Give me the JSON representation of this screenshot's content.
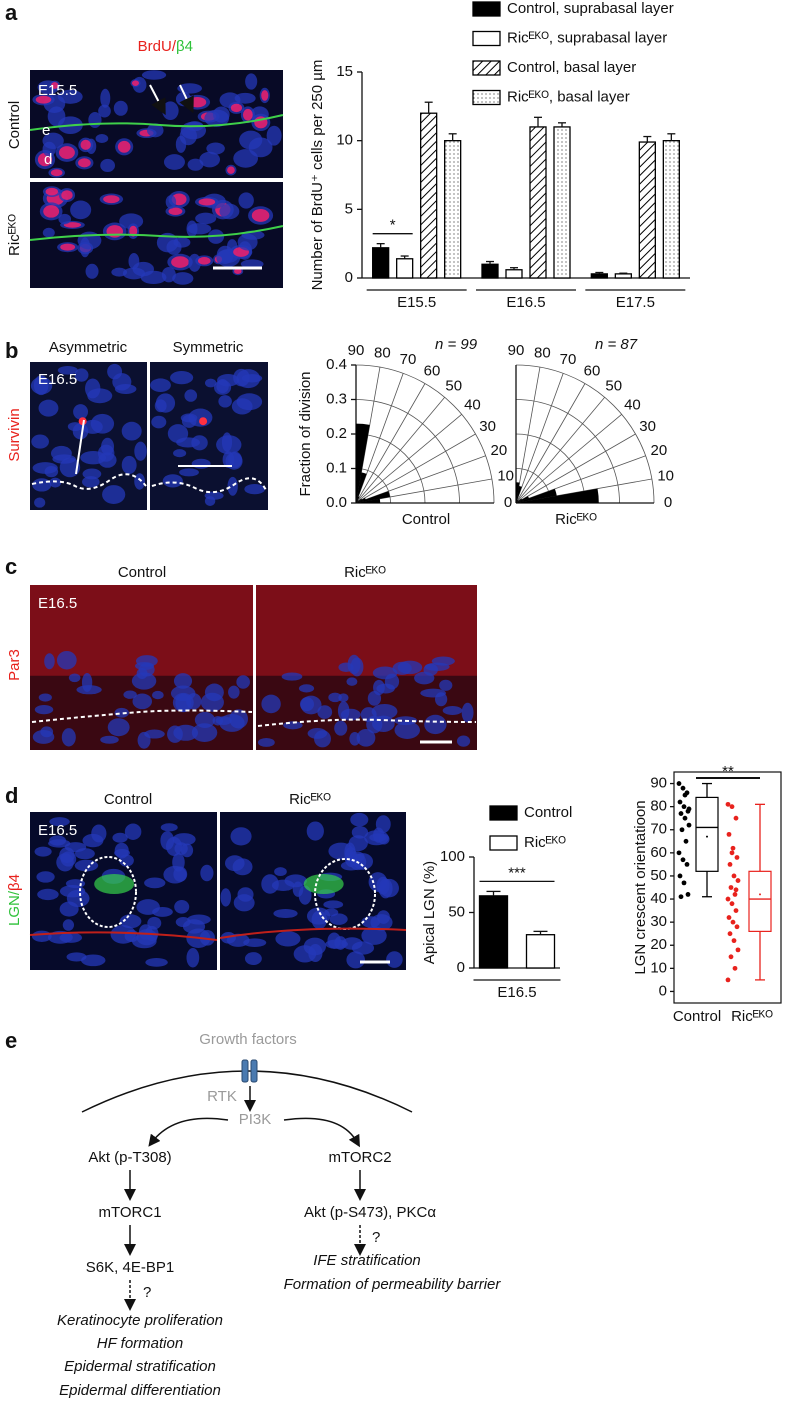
{
  "panel_labels": [
    "a",
    "b",
    "c",
    "d",
    "e"
  ],
  "micrographs": {
    "a": {
      "stain": [
        "BrdU/",
        "β4"
      ],
      "stage": "E15.5",
      "rows": [
        "Control",
        "Ricᴱᴷᴼ"
      ],
      "layers": [
        "e",
        "d"
      ]
    },
    "b": {
      "stain": "Survivin",
      "stage": "E16.5",
      "columns": [
        "Asymmetric",
        "Symmetric"
      ]
    },
    "c": {
      "stain": "Par3",
      "stage": "E16.5",
      "columns": [
        "Control",
        "Ricᴱᴷᴼ"
      ]
    },
    "d": {
      "stain": [
        "LGN/",
        "β4"
      ],
      "stage": "E16.5",
      "columns": [
        "Control",
        "Ricᴱᴷᴼ"
      ]
    }
  },
  "chart_data": [
    {
      "type": "bar",
      "ylabel": "Number of BrdU⁺ cells per 250 µm",
      "categories": [
        "E15.5",
        "E16.5",
        "E17.5"
      ],
      "series": [
        {
          "name": "Control, suprabasal layer",
          "color": "#000000",
          "values": [
            2.2,
            1.0,
            0.3
          ],
          "errors": [
            0.3,
            0.2,
            0.1
          ]
        },
        {
          "name": "Ricᴱᴷᴼ, suprabasal layer",
          "color": "#ffffff",
          "values": [
            1.4,
            0.6,
            0.3
          ],
          "errors": [
            0.2,
            0.15,
            0.05
          ]
        },
        {
          "name": "Control, basal layer",
          "color": "#000000",
          "pattern": "hatch",
          "values": [
            12,
            11,
            9.9
          ],
          "errors": [
            0.8,
            0.7,
            0.4
          ]
        },
        {
          "name": "Ricᴱᴷᴼ, basal layer",
          "color": "#000000",
          "pattern": "dots",
          "values": [
            10,
            11,
            10
          ],
          "errors": [
            0.5,
            0.3,
            0.5
          ]
        }
      ],
      "ylim": [
        0,
        15
      ],
      "yticks": [
        0,
        5,
        10,
        15
      ],
      "annotation": "*"
    },
    {
      "type": "polar_histogram",
      "ylabel": "Fraction of division",
      "label": "Control",
      "n_label": "n = 99",
      "bins": [
        0,
        10,
        20,
        30,
        40,
        50,
        60,
        70,
        80,
        90
      ],
      "values": [
        0.07,
        0.1,
        0.03,
        0.02,
        0.01,
        0.01,
        0.02,
        0.09,
        0.23
      ],
      "rlim": [
        0,
        0.4
      ],
      "rticks": [
        {
          "value": 0,
          "label": "0.0"
        },
        {
          "value": 0.1,
          "label": "0.1"
        },
        {
          "value": 0.2,
          "label": "0.2"
        },
        {
          "value": 0.3,
          "label": "0.3"
        },
        {
          "value": 0.4,
          "label": "0.4"
        }
      ],
      "color": "#000000"
    },
    {
      "type": "polar_histogram",
      "label": "Ricᴱᴷᴼ",
      "n_label": "n = 87",
      "bins": [
        0,
        10,
        20,
        30,
        40,
        50,
        60,
        70,
        80,
        90
      ],
      "values": [
        0.24,
        0.12,
        0.04,
        0.02,
        0.01,
        0.01,
        0.01,
        0.05,
        0.06
      ],
      "rlim": [
        0,
        0.4
      ],
      "rgrid": [
        0.1,
        0.2,
        0.3,
        0.4
      ],
      "color": "#000000"
    },
    {
      "type": "bar",
      "ylabel": "Apical LGN (%)",
      "categories": [
        "E16.5"
      ],
      "series": [
        {
          "name": "Control",
          "color": "#000000",
          "values": [
            65
          ],
          "errors": [
            4
          ]
        },
        {
          "name": "Ricᴱᴷᴼ",
          "color": "#ffffff",
          "values": [
            30
          ],
          "errors": [
            3
          ]
        }
      ],
      "ylim": [
        0,
        100
      ],
      "yticks": [
        0,
        50,
        100
      ],
      "annotation": "***"
    },
    {
      "type": "box",
      "ylabel": "LGN crescent orientatioon",
      "categories": [
        "Control",
        "Ricᴱᴷᴼ"
      ],
      "colors": [
        "#000000",
        "#e8221d"
      ],
      "points": [
        [
          90,
          88,
          86,
          82,
          80,
          78,
          77,
          75,
          72,
          70,
          65,
          60,
          57,
          55,
          50,
          47,
          42,
          41,
          85,
          79
        ],
        [
          81,
          80,
          75,
          68,
          62,
          58,
          55,
          50,
          48,
          45,
          42,
          40,
          38,
          35,
          32,
          30,
          28,
          25,
          22,
          18,
          15,
          10,
          5,
          60,
          44
        ]
      ],
      "boxes": [
        {
          "whisker_low": 41,
          "q1": 52,
          "median": 71,
          "q3": 84,
          "whisker_high": 90,
          "mean": 67
        },
        {
          "whisker_low": 5,
          "q1": 26,
          "median": 40,
          "q3": 52,
          "whisker_high": 81,
          "mean": 42
        }
      ],
      "ylim": [
        -5,
        95
      ],
      "yticks": [
        0,
        10,
        20,
        30,
        40,
        50,
        60,
        70,
        80,
        90
      ],
      "annotation": "**"
    }
  ],
  "diagram": {
    "input": "Growth factors",
    "receptor": "RTK",
    "hub": "PI3K",
    "left": [
      "Akt (p-T308)",
      "mTORC1",
      "S6K, 4E-BP1"
    ],
    "left_unknown": "?",
    "left_outcomes": [
      "Keratinocyte proliferation",
      "HF formation",
      "Epidermal stratification",
      "Epidermal differentiation"
    ],
    "right": [
      "mTORC2",
      "Akt (p-S473), PKCα"
    ],
    "right_unknown": "?",
    "right_outcomes": [
      "IFE stratification",
      "Formation of permeability barrier"
    ]
  }
}
